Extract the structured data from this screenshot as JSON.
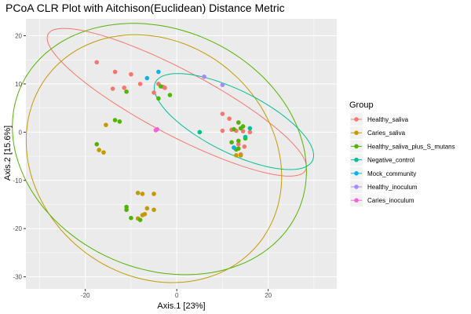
{
  "chart_data": {
    "type": "scatter",
    "title": "PCoA CLR Plot with Aitchison(Euclidean) Distance Metric",
    "xlabel": "Axis.1   [23%]",
    "ylabel": "Axis.2   [15.6%]",
    "xlim": [
      -33,
      35
    ],
    "ylim": [
      -32.5,
      23.5
    ],
    "xticks": [
      -20,
      0,
      20
    ],
    "yticks": [
      -30,
      -20,
      -10,
      0,
      10,
      20
    ],
    "xtick_labels": [
      "-20",
      "0",
      "20"
    ],
    "ytick_labels": [
      "-30",
      "-20",
      "-10",
      "0",
      "10",
      "20"
    ],
    "legend_title": "Group",
    "legend_position": "right",
    "series": [
      {
        "name": "Healthy_saliva",
        "color": "#F8766D",
        "points": [
          [
            -17.5,
            14.5
          ],
          [
            -13.5,
            12.5
          ],
          [
            -10,
            12
          ],
          [
            -8,
            10
          ],
          [
            -11.5,
            9.2
          ],
          [
            -14,
            9
          ],
          [
            -5,
            8.2
          ],
          [
            -4,
            10
          ],
          [
            -3,
            9.4
          ],
          [
            -2.6,
            9.2
          ],
          [
            10,
            3.8
          ],
          [
            11.5,
            2.8
          ],
          [
            13.5,
            2
          ],
          [
            10,
            0.3
          ],
          [
            12,
            0.5
          ],
          [
            13,
            0.3
          ],
          [
            14.5,
            0.2
          ],
          [
            16,
            0
          ],
          [
            13.5,
            -2.5
          ],
          [
            14.8,
            -3
          ],
          [
            12.5,
            -3.2
          ],
          [
            14,
            -4.6
          ]
        ]
      },
      {
        "name": "Caries_saliva",
        "color": "#C49A00",
        "points": [
          [
            -15.5,
            1.5
          ],
          [
            -17,
            -3.7
          ],
          [
            -16,
            -4.2
          ],
          [
            -8.5,
            -12.6
          ],
          [
            -7.5,
            -12.8
          ],
          [
            -5,
            -12.8
          ],
          [
            -6.5,
            -15.8
          ],
          [
            -5,
            -16.1
          ],
          [
            -7.5,
            -17.2
          ],
          [
            -7,
            -17
          ],
          [
            -8.5,
            -17.9
          ],
          [
            13,
            -4.8
          ],
          [
            14,
            -4.8
          ]
        ]
      },
      {
        "name": "Healthy_saliva_plus_S_mutans",
        "color": "#53B400",
        "points": [
          [
            -13.5,
            2.5
          ],
          [
            -12.5,
            2.2
          ],
          [
            -11,
            8.4
          ],
          [
            -4,
            7
          ],
          [
            -3.5,
            9.5
          ],
          [
            -1.5,
            7.7
          ],
          [
            -17.5,
            -2.5
          ],
          [
            -11,
            -15.5
          ],
          [
            -11,
            -16.1
          ],
          [
            -10,
            -17.8
          ],
          [
            -8,
            -18.2
          ],
          [
            13.5,
            2
          ],
          [
            14.5,
            1.2
          ],
          [
            14,
            0.8
          ],
          [
            12.5,
            0.6
          ],
          [
            13.5,
            -1.8
          ],
          [
            12,
            -2.1
          ],
          [
            15,
            -1.3
          ],
          [
            13.5,
            -3.4
          ],
          [
            13,
            -3.6
          ]
        ]
      },
      {
        "name": "Negative_control",
        "color": "#00C094",
        "points": [
          [
            5,
            0
          ],
          [
            16,
            0.8
          ],
          [
            15,
            -1
          ]
        ]
      },
      {
        "name": "Mock_community",
        "color": "#00B6EB",
        "points": [
          [
            -4,
            12.5
          ],
          [
            -6.5,
            11.2
          ],
          [
            12.5,
            -3.2
          ]
        ]
      },
      {
        "name": "Healthy_inoculum",
        "color": "#A58AFF",
        "points": [
          [
            6,
            11.5
          ],
          [
            10,
            9.8
          ]
        ]
      },
      {
        "name": "Caries_inoculum",
        "color": "#FB61D7",
        "points": [
          [
            -4.6,
            0.4
          ],
          [
            -4.3,
            0.6
          ]
        ]
      }
    ],
    "ellipses": [
      {
        "group": "Healthy_saliva",
        "color": "#F8766D",
        "cx": 0,
        "cy": 6.2,
        "rx": 31.5,
        "ry": 6.8,
        "angle_deg": -26.5
      },
      {
        "group": "Caries_saliva",
        "color": "#C49A00",
        "cx": -5,
        "cy": -5.5,
        "rx": 29,
        "ry": 24.5,
        "angle_deg": -30
      },
      {
        "group": "Healthy_saliva_plus_S_mutans",
        "color": "#53B400",
        "cx": -3.8,
        "cy": -3.5,
        "rx": 33,
        "ry": 25,
        "angle_deg": -20
      },
      {
        "group": "Negative_control",
        "color": "#00C094",
        "cx": 12.5,
        "cy": 2.2,
        "rx": 19,
        "ry": 6.5,
        "angle_deg": -25
      }
    ]
  }
}
